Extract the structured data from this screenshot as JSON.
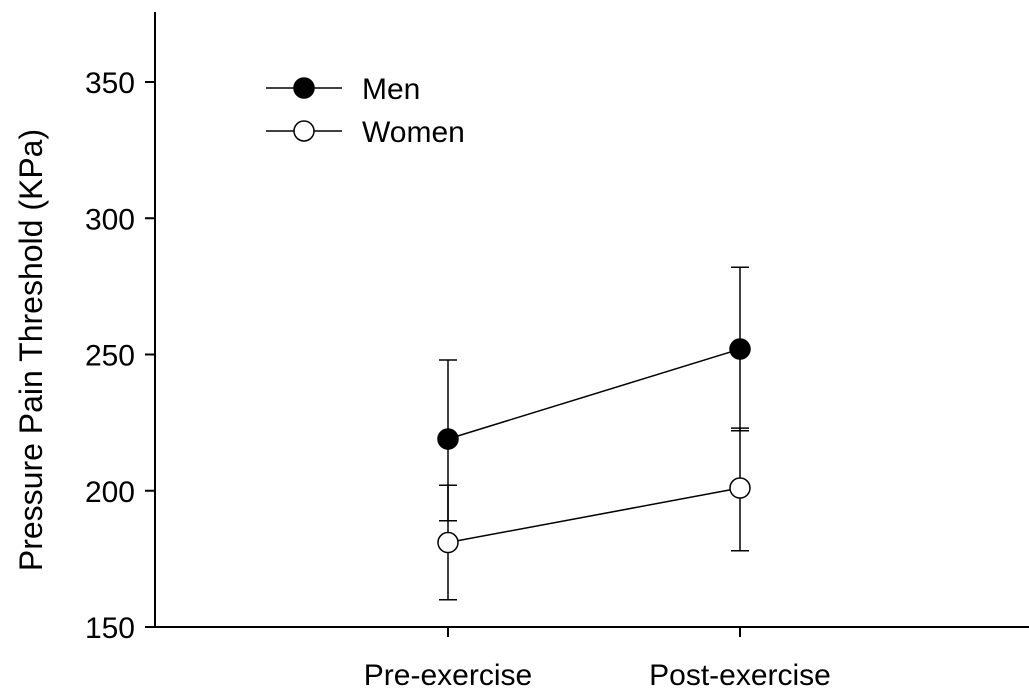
{
  "chart_data": {
    "type": "line",
    "title": "",
    "xlabel": "",
    "ylabel": "Pressure Pain Threshold (KPa)",
    "categories": [
      "Pre-exercise",
      "Post-exercise"
    ],
    "ylim": [
      150,
      375
    ],
    "yticks": [
      150,
      200,
      250,
      300,
      350
    ],
    "legend_position": "top-left",
    "grid": false,
    "series": [
      {
        "name": "Men",
        "marker": "filled-circle",
        "color": "#000000",
        "values": [
          219,
          252
        ],
        "error_upper": [
          248,
          282
        ],
        "error_lower": [
          189,
          222
        ]
      },
      {
        "name": "Women",
        "marker": "open-circle",
        "color": "#000000",
        "values": [
          181,
          201
        ],
        "error_upper": [
          202,
          223
        ],
        "error_lower": [
          160,
          178
        ]
      }
    ]
  }
}
